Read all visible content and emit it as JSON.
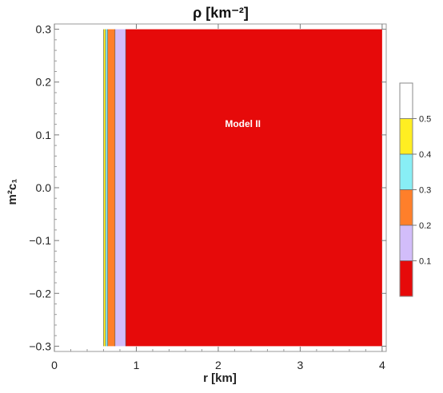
{
  "chart_data": {
    "type": "contour",
    "title": "ρ [km⁻²]",
    "xlabel": "r [km]",
    "ylabel": "m²c₁",
    "xlim": [
      0,
      4.05
    ],
    "ylim": [
      -0.31,
      0.31
    ],
    "x_ticks": [
      0,
      1,
      2,
      3,
      4
    ],
    "y_ticks": [
      -0.3,
      -0.2,
      -0.1,
      0.0,
      0.1,
      0.2,
      0.3
    ],
    "y_tick_labels": [
      "−0.3",
      "−0.2",
      "−0.1",
      "0.0",
      "0.1",
      "0.2",
      "0.3"
    ],
    "plot_y_range": [
      -0.3,
      0.3
    ],
    "bands": [
      {
        "from_r": 0.6,
        "to_r": 0.625,
        "level": "0.4–0.5",
        "color": "#ffee22"
      },
      {
        "from_r": 0.625,
        "to_r": 0.65,
        "level": "0.3–0.4",
        "color": "#88eef5"
      },
      {
        "from_r": 0.65,
        "to_r": 0.74,
        "level": "0.2–0.3",
        "color": "#ff7f2a"
      },
      {
        "from_r": 0.74,
        "to_r": 0.87,
        "level": "0.1–0.2",
        "color": "#d2bdfa"
      },
      {
        "from_r": 0.87,
        "to_r": 4.0,
        "level": "< 0.1",
        "color": "#e60a0a"
      }
    ],
    "annotation": {
      "text": "Model II",
      "r": 2.3,
      "y": 0.115
    },
    "legend": {
      "placement": "right",
      "levels": [
        "0.5",
        "0.4",
        "0.3",
        "0.2",
        "0.1"
      ],
      "swatches": [
        "#ffffff",
        "#ffee22",
        "#88eef5",
        "#ff7f2a",
        "#d2bdfa",
        "#e60a0a"
      ]
    },
    "grid": false
  }
}
